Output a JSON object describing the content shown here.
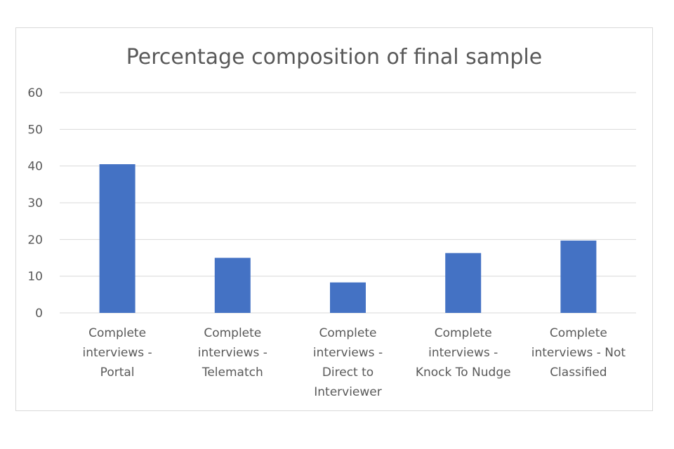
{
  "chart_data": {
    "type": "bar",
    "title": "Percentage composition of final sample",
    "xlabel": "",
    "ylabel": "",
    "categories": [
      [
        "Complete",
        "interviews -",
        "Portal"
      ],
      [
        "Complete",
        "interviews -",
        "Telematch"
      ],
      [
        "Complete",
        "interviews -",
        "Direct to",
        "Interviewer"
      ],
      [
        "Complete",
        "interviews -",
        "Knock To Nudge"
      ],
      [
        "Complete",
        "interviews - Not",
        "Classified"
      ]
    ],
    "values": [
      40.5,
      15,
      8.3,
      16.3,
      19.7
    ],
    "ylim": [
      0,
      60
    ],
    "yticks": [
      0,
      10,
      20,
      30,
      40,
      50,
      60
    ],
    "grid": true,
    "legend": "none",
    "bar_color": "#4472c4"
  }
}
